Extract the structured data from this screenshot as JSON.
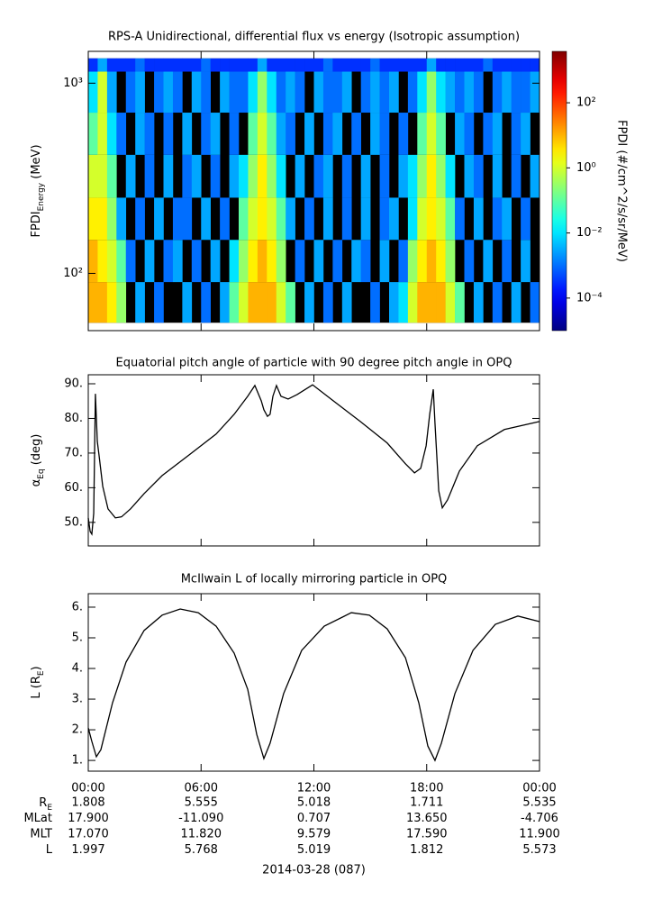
{
  "chart_data": [
    {
      "type": "spectrogram",
      "title": "RPS-A Unidirectional, differential flux vs energy (Isotropic assumption)",
      "ylabel": [
        "FPDI",
        "Energy",
        " (MeV)"
      ],
      "zlabel": "FPDI (#/cm^2/s/sr/MeV)",
      "log": true,
      "xlim": [
        0,
        24
      ],
      "xticks": [
        0,
        6,
        12,
        18,
        24
      ],
      "ylim": [
        50,
        1470
      ],
      "yticks": [
        {
          "value": 100,
          "label": "10²"
        },
        {
          "value": 1000,
          "label": "10³"
        }
      ],
      "zlim": [
        1e-05,
        3800
      ],
      "zticks": [
        {
          "value": 0.0001,
          "label": "10⁻⁴"
        },
        {
          "value": 0.01,
          "label": "10⁻²"
        },
        {
          "value": 1,
          "label": "10⁰"
        },
        {
          "value": 100,
          "label": "10²"
        }
      ],
      "xbins": [
        0,
        0.5,
        1,
        1.5,
        2,
        2.5,
        3,
        3.5,
        4,
        4.5,
        5,
        5.5,
        6,
        6.5,
        7,
        7.5,
        8,
        8.5,
        9,
        9.5,
        10,
        10.5,
        11,
        11.5,
        12,
        12.5,
        13,
        13.5,
        14,
        14.5,
        15,
        15.5,
        16,
        16.5,
        17,
        17.5,
        18,
        18.5,
        19,
        19.5,
        20,
        20.5,
        21,
        21.5,
        22,
        22.5,
        23,
        23.5,
        24
      ],
      "ybins": [
        55,
        90,
        150,
        250,
        420,
        700,
        1150,
        1350
      ],
      "z": [
        [
          10,
          10,
          3,
          0.3,
          null,
          0.003,
          null,
          0.001,
          null,
          null,
          0.003,
          null,
          0.001,
          null,
          0.003,
          0.1,
          1,
          10,
          10,
          10,
          1,
          0.1,
          null,
          0.003,
          null,
          0.001,
          null,
          0.003,
          null,
          null,
          0.001,
          null,
          0.003,
          0.01,
          1,
          10,
          10,
          10,
          1,
          0.1,
          null,
          0.003,
          null,
          0.001,
          null,
          0.003,
          null,
          0.001
        ],
        [
          10,
          3,
          1,
          0.1,
          0.001,
          null,
          0.003,
          null,
          0.001,
          0.003,
          null,
          0.001,
          null,
          0.003,
          null,
          0.01,
          0.3,
          3,
          10,
          3,
          0.3,
          null,
          0.001,
          null,
          0.003,
          null,
          0.001,
          null,
          0.003,
          0.001,
          null,
          0.003,
          null,
          0.001,
          0.3,
          3,
          10,
          3,
          0.3,
          null,
          0.001,
          null,
          0.003,
          null,
          0.001,
          null,
          0.003,
          null
        ],
        [
          3,
          3,
          0.3,
          0.003,
          null,
          0.001,
          null,
          0.003,
          null,
          0.001,
          0.001,
          null,
          0.003,
          null,
          0.001,
          null,
          0.1,
          1,
          3,
          1,
          0.1,
          0.003,
          null,
          0.001,
          null,
          0.003,
          null,
          0.001,
          null,
          0.003,
          null,
          0.001,
          0.003,
          null,
          0.01,
          1,
          3,
          1,
          0.1,
          0.001,
          null,
          0.003,
          null,
          0.001,
          0.003,
          null,
          0.001,
          null
        ],
        [
          1,
          1,
          0.1,
          null,
          0.003,
          null,
          0.001,
          null,
          0.003,
          null,
          0.001,
          0.003,
          null,
          0.001,
          null,
          0.003,
          0.01,
          0.3,
          3,
          0.3,
          0.01,
          null,
          0.003,
          null,
          0.001,
          0.003,
          null,
          0.001,
          null,
          0.003,
          null,
          0.001,
          null,
          0.003,
          0.01,
          0.3,
          3,
          0.3,
          0.01,
          null,
          0.003,
          0.001,
          null,
          0.003,
          null,
          0.001,
          null,
          0.003
        ],
        [
          0.1,
          1,
          0.01,
          0.001,
          null,
          0.003,
          0.001,
          null,
          0.001,
          null,
          0.003,
          null,
          0.001,
          0.003,
          null,
          0.001,
          null,
          0.1,
          1,
          0.1,
          0.003,
          0.001,
          null,
          0.003,
          null,
          0.001,
          0.003,
          null,
          0.001,
          null,
          0.003,
          0.001,
          null,
          0.001,
          null,
          0.1,
          1,
          0.1,
          null,
          0.003,
          0.001,
          null,
          0.001,
          0.003,
          null,
          0.001,
          0.003,
          null
        ],
        [
          0.01,
          1,
          0.003,
          null,
          0.001,
          0.003,
          null,
          0.001,
          0.003,
          0.001,
          null,
          0.003,
          0.001,
          null,
          0.003,
          0.001,
          0.001,
          0.01,
          0.3,
          0.01,
          0.001,
          0.003,
          0.001,
          null,
          0.003,
          0.001,
          0.001,
          0.003,
          null,
          0.001,
          0.003,
          0.001,
          0.003,
          null,
          0.001,
          0.01,
          0.3,
          0.01,
          0.003,
          0.001,
          0.003,
          0.001,
          null,
          0.001,
          0.003,
          0.001,
          0.001,
          0.003
        ],
        [
          0.0003,
          0.003,
          0.0003,
          0.0003,
          0.0003,
          0.001,
          0.0003,
          0.0003,
          0.0003,
          0.0003,
          0.0003,
          0.0003,
          0.001,
          0.0003,
          0.0003,
          0.0003,
          0.0003,
          0.0003,
          0.003,
          0.0003,
          0.0003,
          0.0003,
          0.0003,
          0.0003,
          0.0003,
          0.001,
          0.0003,
          0.0003,
          0.0003,
          0.0003,
          0.001,
          0.0003,
          0.0003,
          0.0003,
          0.0003,
          0.0003,
          0.003,
          0.0003,
          0.0003,
          0.0003,
          0.0003,
          0.0003,
          0.001,
          0.0003,
          0.0003,
          0.0003,
          0.0003,
          0.0003
        ]
      ]
    },
    {
      "type": "line",
      "title": "Equatorial pitch angle of particle with 90 degree pitch angle in OPQ",
      "ylabel": [
        "α",
        "Eq",
        " (deg)"
      ],
      "xlim": [
        0,
        24
      ],
      "xticks": [
        0,
        6,
        12,
        18,
        24
      ],
      "ylim": [
        43.2,
        92.6
      ],
      "yticks": [
        {
          "value": 50,
          "label": "50."
        },
        {
          "value": 60,
          "label": "60."
        },
        {
          "value": 70,
          "label": "70."
        },
        {
          "value": 80,
          "label": "80."
        },
        {
          "value": 90,
          "label": "90."
        }
      ],
      "color": "#000000",
      "x": [
        0,
        0.1,
        0.19,
        0.29,
        0.38,
        0.48,
        0.57,
        0.77,
        1.05,
        1.44,
        1.77,
        2.25,
        2.97,
        3.93,
        5.37,
        6.8,
        7.76,
        8.48,
        8.86,
        9.2,
        9.34,
        9.53,
        9.67,
        9.82,
        10.01,
        10.25,
        10.63,
        11.11,
        11.93,
        13.03,
        14.47,
        15.9,
        16.87,
        17.35,
        17.68,
        17.97,
        18.16,
        18.35,
        18.44,
        18.64,
        18.83,
        19.11,
        19.74,
        20.69,
        22.13,
        24
      ],
      "y": [
        51.3,
        47.4,
        46.6,
        52.6,
        87.1,
        73.4,
        69.5,
        60.4,
        53.9,
        51.3,
        51.6,
        53.9,
        58.3,
        63.5,
        69.5,
        75.5,
        81.2,
        86.4,
        89.5,
        85.1,
        82.5,
        80.6,
        81.2,
        86.4,
        89.5,
        86.4,
        85.6,
        86.9,
        89.7,
        85.1,
        79.1,
        72.9,
        66.9,
        64.3,
        65.6,
        72.1,
        81.2,
        88.4,
        78.6,
        59.1,
        54.2,
        56.5,
        64.8,
        72.1,
        76.8,
        79.1
      ]
    },
    {
      "type": "line",
      "title": "McIlwain L of locally mirroring particle in OPQ",
      "ylabel": [
        "L (R",
        "E",
        ")"
      ],
      "xlim": [
        0,
        24
      ],
      "xticks": [
        {
          "value": 0,
          "label": "00:00"
        },
        {
          "value": 6,
          "label": "06:00"
        },
        {
          "value": 12,
          "label": "12:00"
        },
        {
          "value": 18,
          "label": "18:00"
        },
        {
          "value": 24,
          "label": "00:00"
        }
      ],
      "ylim": [
        0.65,
        6.44
      ],
      "yticks": [
        {
          "value": 1,
          "label": "1."
        },
        {
          "value": 2,
          "label": "2."
        },
        {
          "value": 3,
          "label": "3."
        },
        {
          "value": 4,
          "label": "4."
        },
        {
          "value": 5,
          "label": "5."
        },
        {
          "value": 6,
          "label": "6."
        }
      ],
      "color": "#000000",
      "x": [
        0,
        0.19,
        0.43,
        0.67,
        1.29,
        2.01,
        2.97,
        3.93,
        4.89,
        5.85,
        6.8,
        7.76,
        8.48,
        8.96,
        9.34,
        9.67,
        10.39,
        11.35,
        12.55,
        13.99,
        14.95,
        15.9,
        16.87,
        17.58,
        18.06,
        18.44,
        18.78,
        19.5,
        20.46,
        21.65,
        22.85,
        24
      ],
      "y": [
        2.06,
        1.62,
        1.12,
        1.35,
        2.88,
        4.21,
        5.24,
        5.74,
        5.94,
        5.82,
        5.38,
        4.5,
        3.32,
        1.85,
        1.06,
        1.56,
        3.18,
        4.59,
        5.38,
        5.82,
        5.74,
        5.29,
        4.35,
        2.88,
        1.47,
        1,
        1.56,
        3.18,
        4.59,
        5.44,
        5.71,
        5.53
      ]
    }
  ],
  "ephemeris": {
    "rows": [
      {
        "label": [
          "R",
          "E"
        ],
        "values": [
          "1.808",
          "5.555",
          "5.018",
          "1.711",
          "5.535"
        ]
      },
      {
        "label": "MLat",
        "values": [
          "17.900",
          "-11.090",
          "0.707",
          "13.650",
          "-4.706"
        ]
      },
      {
        "label": "MLT",
        "values": [
          "17.070",
          "11.820",
          "9.579",
          "17.590",
          "11.900"
        ]
      },
      {
        "label": "L",
        "values": [
          "1.997",
          "5.768",
          "5.019",
          "1.812",
          "5.573"
        ]
      }
    ],
    "date": "2014-03-28 (087)"
  }
}
